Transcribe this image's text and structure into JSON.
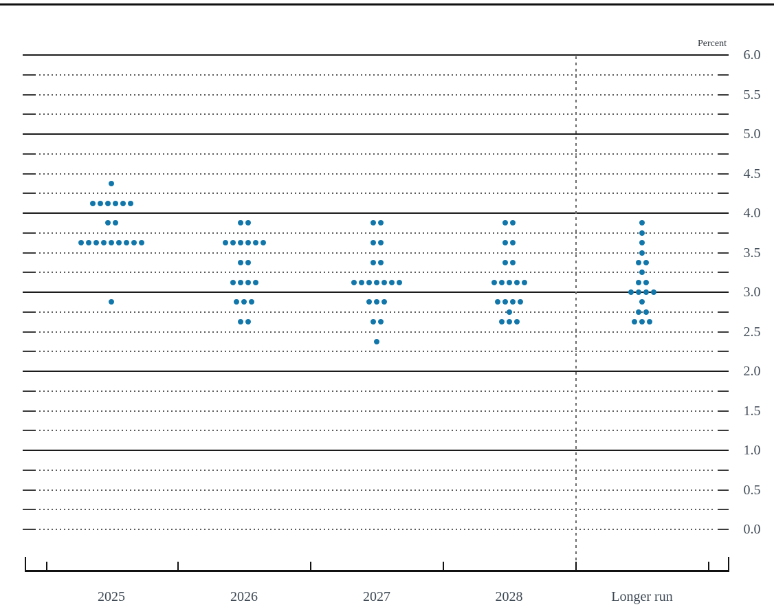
{
  "chart_data": {
    "type": "scatter",
    "variant": "fomc-dot-plot",
    "title": "",
    "xlabel": "",
    "ylabel": "Percent",
    "ylim": [
      0.0,
      6.0
    ],
    "y_label_step": 0.5,
    "y_grid_minor_step": 0.25,
    "solid_gridlines_at": [
      6.0,
      5.0,
      4.0,
      3.0,
      2.0,
      1.0
    ],
    "grid": "dotted-minor",
    "legend_position": "none",
    "y_tick_labels": [
      "6.0",
      "5.5",
      "5.0",
      "4.5",
      "4.0",
      "3.5",
      "3.0",
      "2.5",
      "2.0",
      "1.5",
      "1.0",
      "0.5",
      "0.0"
    ],
    "categories": [
      "2025",
      "2026",
      "2027",
      "2028",
      "Longer run"
    ],
    "dot_color": "#1176a9",
    "dot_unit": "percent midpoint of target range",
    "separator": {
      "before_category": "Longer run",
      "style": "dashed"
    },
    "series": [
      {
        "category": "2025",
        "dots": [
          {
            "rate": 4.375,
            "count": 1
          },
          {
            "rate": 4.125,
            "count": 6
          },
          {
            "rate": 3.875,
            "count": 2
          },
          {
            "rate": 3.625,
            "count": 9
          },
          {
            "rate": 2.875,
            "count": 1
          }
        ]
      },
      {
        "category": "2026",
        "dots": [
          {
            "rate": 3.875,
            "count": 2
          },
          {
            "rate": 3.625,
            "count": 6
          },
          {
            "rate": 3.375,
            "count": 2
          },
          {
            "rate": 3.125,
            "count": 4
          },
          {
            "rate": 2.875,
            "count": 3
          },
          {
            "rate": 2.625,
            "count": 2
          }
        ]
      },
      {
        "category": "2027",
        "dots": [
          {
            "rate": 3.875,
            "count": 2
          },
          {
            "rate": 3.625,
            "count": 2
          },
          {
            "rate": 3.375,
            "count": 2
          },
          {
            "rate": 3.125,
            "count": 7
          },
          {
            "rate": 2.875,
            "count": 3
          },
          {
            "rate": 2.625,
            "count": 2
          },
          {
            "rate": 2.375,
            "count": 1
          }
        ]
      },
      {
        "category": "2028",
        "dots": [
          {
            "rate": 3.875,
            "count": 2
          },
          {
            "rate": 3.625,
            "count": 2
          },
          {
            "rate": 3.375,
            "count": 2
          },
          {
            "rate": 3.125,
            "count": 5
          },
          {
            "rate": 2.875,
            "count": 4
          },
          {
            "rate": 2.75,
            "count": 1
          },
          {
            "rate": 2.625,
            "count": 3
          }
        ]
      },
      {
        "category": "Longer run",
        "dots": [
          {
            "rate": 3.875,
            "count": 1
          },
          {
            "rate": 3.75,
            "count": 1
          },
          {
            "rate": 3.625,
            "count": 1
          },
          {
            "rate": 3.5,
            "count": 1
          },
          {
            "rate": 3.375,
            "count": 2
          },
          {
            "rate": 3.25,
            "count": 1
          },
          {
            "rate": 3.125,
            "count": 2
          },
          {
            "rate": 3.0,
            "count": 4
          },
          {
            "rate": 2.875,
            "count": 1
          },
          {
            "rate": 2.75,
            "count": 2
          },
          {
            "rate": 2.625,
            "count": 3
          }
        ]
      }
    ]
  }
}
